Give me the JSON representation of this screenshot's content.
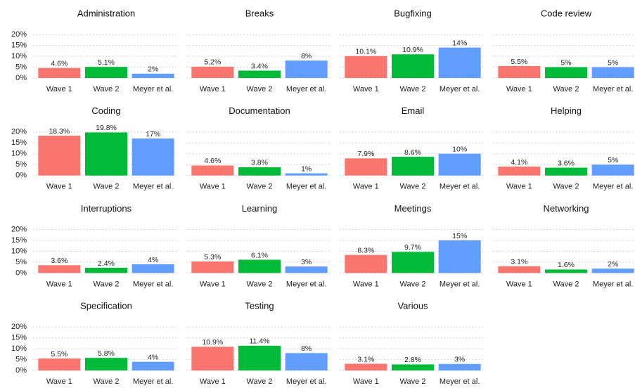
{
  "chart_data": {
    "type": "bar",
    "categories": [
      "Wave 1",
      "Wave 2",
      "Meyer et al."
    ],
    "colors": [
      "#F8766D",
      "#00BA38",
      "#619CFF"
    ],
    "ylim": [
      0,
      21
    ],
    "yticks": [
      {
        "value": 0,
        "label": "0%"
      },
      {
        "value": 5,
        "label": "5%"
      },
      {
        "value": 10,
        "label": "10%"
      },
      {
        "value": 15,
        "label": "15%"
      },
      {
        "value": 20,
        "label": "20%"
      }
    ],
    "grid": true,
    "panels": [
      {
        "title": "Administration",
        "values": [
          4.6,
          5.1,
          2
        ],
        "value_labels": [
          "4.6%",
          "5.1%",
          "2%"
        ]
      },
      {
        "title": "Breaks",
        "values": [
          5.2,
          3.4,
          8
        ],
        "value_labels": [
          "5.2%",
          "3.4%",
          "8%"
        ]
      },
      {
        "title": "Bugfixing",
        "values": [
          10.1,
          10.9,
          14
        ],
        "value_labels": [
          "10.1%",
          "10.9%",
          "14%"
        ]
      },
      {
        "title": "Code review",
        "values": [
          5.5,
          5,
          5
        ],
        "value_labels": [
          "5.5%",
          "5%",
          "5%"
        ]
      },
      {
        "title": "Coding",
        "values": [
          18.3,
          19.8,
          17
        ],
        "value_labels": [
          "18.3%",
          "19.8%",
          "17%"
        ]
      },
      {
        "title": "Documentation",
        "values": [
          4.6,
          3.8,
          1
        ],
        "value_labels": [
          "4.6%",
          "3.8%",
          "1%"
        ]
      },
      {
        "title": "Email",
        "values": [
          7.9,
          8.6,
          10
        ],
        "value_labels": [
          "7.9%",
          "8.6%",
          "10%"
        ]
      },
      {
        "title": "Helping",
        "values": [
          4.1,
          3.6,
          5
        ],
        "value_labels": [
          "4.1%",
          "3.6%",
          "5%"
        ]
      },
      {
        "title": "Interruptions",
        "values": [
          3.6,
          2.4,
          4
        ],
        "value_labels": [
          "3.6%",
          "2.4%",
          "4%"
        ]
      },
      {
        "title": "Learning",
        "values": [
          5.3,
          6.1,
          3
        ],
        "value_labels": [
          "5.3%",
          "6.1%",
          "3%"
        ]
      },
      {
        "title": "Meetings",
        "values": [
          8.3,
          9.7,
          15
        ],
        "value_labels": [
          "8.3%",
          "9.7%",
          "15%"
        ]
      },
      {
        "title": "Networking",
        "values": [
          3.1,
          1.6,
          2
        ],
        "value_labels": [
          "3.1%",
          "1.6%",
          "2%"
        ]
      },
      {
        "title": "Specification",
        "values": [
          5.5,
          5.8,
          4
        ],
        "value_labels": [
          "5.5%",
          "5.8%",
          "4%"
        ]
      },
      {
        "title": "Testing",
        "values": [
          10.9,
          11.4,
          8
        ],
        "value_labels": [
          "10.9%",
          "11.4%",
          "8%"
        ]
      },
      {
        "title": "Various",
        "values": [
          3.1,
          2.8,
          3
        ],
        "value_labels": [
          "3.1%",
          "2.8%",
          "3%"
        ]
      }
    ]
  }
}
